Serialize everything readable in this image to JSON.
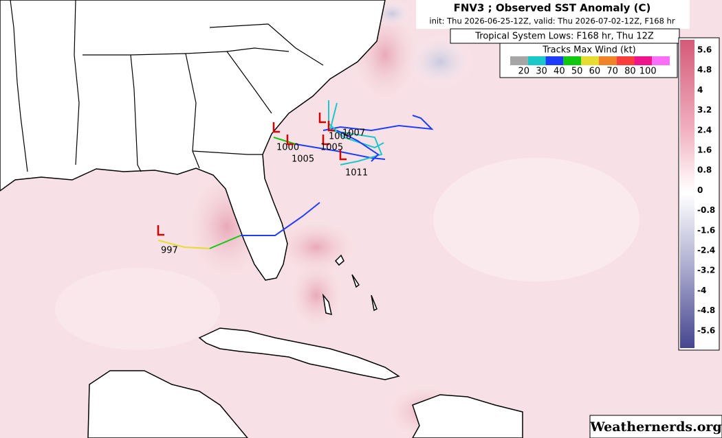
{
  "header": {
    "title": "FNV3 ; Observed SST Anomaly (C)",
    "subtitle": "init: Thu 2026-06-25-12Z, valid: Thu 2026-07-02-12Z, F168 hr",
    "lows_title": "Tropical System Lows: F168 hr, Thu 12Z"
  },
  "wind_legend": {
    "title": "Tracks Max Wind (kt)",
    "colors": [
      "#a6a6a6",
      "#19c8c8",
      "#1e3cff",
      "#10c810",
      "#e6dc32",
      "#f08228",
      "#fa3c3c",
      "#f0148c",
      "#fa6efa"
    ],
    "labels": [
      20,
      30,
      40,
      50,
      60,
      70,
      80,
      100
    ]
  },
  "colorbar": {
    "ticks": [
      5.6,
      4.8,
      4,
      3.2,
      2.4,
      1.6,
      0.8,
      0,
      -0.8,
      -1.6,
      -2.4,
      -3.2,
      -4,
      -4.8,
      -5.6
    ]
  },
  "lows": [
    {
      "pressure": 1007
    },
    {
      "pressure": 1006
    },
    {
      "pressure": 1005
    },
    {
      "pressure": 1000
    },
    {
      "pressure": 1005
    },
    {
      "pressure": 1011
    },
    {
      "pressure": 997
    }
  ],
  "watermark": "Weathernerds.org"
}
